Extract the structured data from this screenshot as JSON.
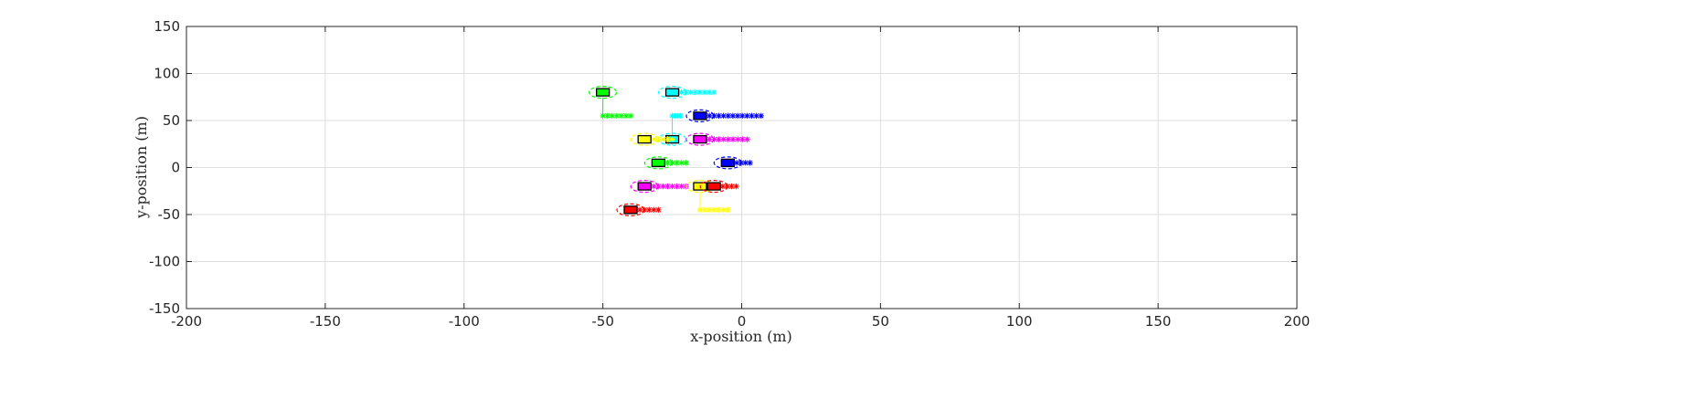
{
  "chart_data": {
    "type": "scatter",
    "xlabel": "x-position (m)",
    "ylabel": "y-position (m)",
    "xlim": [
      -200,
      200
    ],
    "ylim": [
      -150,
      150
    ],
    "xticks": [
      -200,
      -150,
      -100,
      -50,
      0,
      50,
      100,
      150,
      200
    ],
    "yticks": [
      -150,
      -100,
      -50,
      0,
      50,
      100,
      150
    ],
    "xtick_labels": [
      "-200",
      "-150",
      "-100",
      "-50",
      "0",
      "50",
      "100",
      "150",
      "200"
    ],
    "ytick_labels": [
      "-150",
      "-100",
      "-50",
      "0",
      "50",
      "100",
      "150"
    ],
    "grid": true,
    "vehicles": [
      {
        "color": "#00ff00",
        "x": -50,
        "y": 80,
        "trail_x": [
          -50,
          -40
        ],
        "trail_y": 55,
        "link": true
      },
      {
        "color": "#00ffff",
        "x": -25,
        "y": 80,
        "trail_x": [
          -25,
          -10
        ],
        "trail_y": 80
      },
      {
        "color": "#0000ff",
        "x": -15,
        "y": 55,
        "trail_x": [
          -15,
          7
        ],
        "trail_y": 55
      },
      {
        "color": "#00ffff",
        "x": -25,
        "y": 30,
        "trail_x": [
          -25,
          -22
        ],
        "trail_y": 55,
        "link": true
      },
      {
        "color": "#ffff00",
        "x": -35,
        "y": 30,
        "trail_x": [
          -35,
          -25
        ],
        "trail_y": 30
      },
      {
        "color": "#ff00ff",
        "x": -15,
        "y": 30,
        "trail_x": [
          -15,
          2
        ],
        "trail_y": 30
      },
      {
        "color": "#00ff00",
        "x": -30,
        "y": 5,
        "trail_x": [
          -30,
          -20
        ],
        "trail_y": 5
      },
      {
        "color": "#0000ff",
        "x": -5,
        "y": 5,
        "trail_x": [
          -5,
          3
        ],
        "trail_y": 5
      },
      {
        "color": "#ff00ff",
        "x": -35,
        "y": -20,
        "trail_x": [
          -35,
          -20
        ],
        "trail_y": -20
      },
      {
        "color": "#ffff00",
        "x": -15,
        "y": -20,
        "trail_x": [
          -15,
          -5
        ],
        "trail_y": -45,
        "link": true
      },
      {
        "color": "#ff0000",
        "x": -10,
        "y": -20,
        "trail_x": [
          -10,
          -2
        ],
        "trail_y": -20
      },
      {
        "color": "#ff0000",
        "x": -40,
        "y": -45,
        "trail_x": [
          -40,
          -30
        ],
        "trail_y": -45
      }
    ]
  }
}
